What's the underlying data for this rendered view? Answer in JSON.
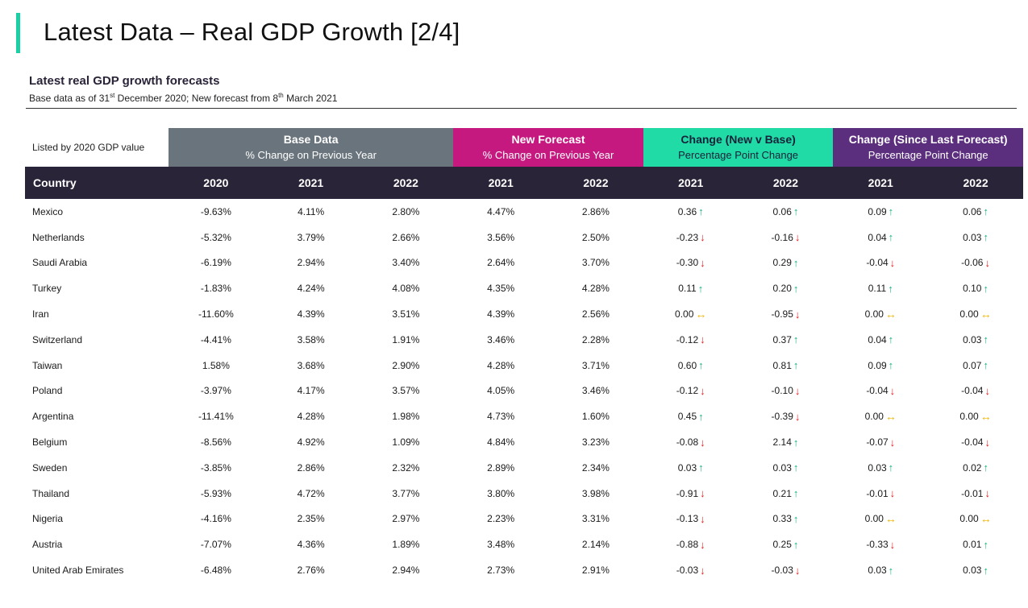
{
  "page": {
    "title": "Latest Data – Real GDP Growth [2/4]",
    "subtitle": "Latest real GDP growth forecasts",
    "note_prefix": "Base data as of 31",
    "note_sup1": "st",
    "note_mid": " December 2020; New forecast from 8",
    "note_sup2": "th",
    "note_suffix": " March 2021"
  },
  "groups": {
    "listed_label": "Listed by 2020 GDP value",
    "base_title": "Base Data",
    "base_sub": "% Change on Previous Year",
    "new_title": "New Forecast",
    "new_sub": "% Change on Previous Year",
    "chg_title": "Change (New v Base)",
    "chg_sub": "Percentage Point Change",
    "since_title": "Change (Since Last Forecast)",
    "since_sub": "Percentage Point Change"
  },
  "columns": [
    "Country",
    "2020",
    "2021",
    "2022",
    "2021",
    "2022",
    "2021",
    "2022",
    "2021",
    "2022"
  ],
  "colors": {
    "accent": "#1ad1a5",
    "base": "#6a747c",
    "new": "#c5197f",
    "change": "#21dba6",
    "since": "#5b2e7e",
    "header": "#2a2438",
    "up": "#18b57a",
    "down": "#e02020",
    "flat": "#f5b400"
  },
  "rows": [
    {
      "country": "Mexico",
      "base2020": "-9.63%",
      "base2021": "4.11%",
      "base2022": "2.80%",
      "new2021": "4.47%",
      "new2022": "2.86%",
      "chg2021": "0.36",
      "chg2021_dir": "up",
      "chg2022": "0.06",
      "chg2022_dir": "up",
      "since2021": "0.09",
      "since2021_dir": "up",
      "since2022": "0.06",
      "since2022_dir": "up"
    },
    {
      "country": "Netherlands",
      "base2020": "-5.32%",
      "base2021": "3.79%",
      "base2022": "2.66%",
      "new2021": "3.56%",
      "new2022": "2.50%",
      "chg2021": "-0.23",
      "chg2021_dir": "down",
      "chg2022": "-0.16",
      "chg2022_dir": "down",
      "since2021": "0.04",
      "since2021_dir": "up",
      "since2022": "0.03",
      "since2022_dir": "up"
    },
    {
      "country": "Saudi Arabia",
      "base2020": "-6.19%",
      "base2021": "2.94%",
      "base2022": "3.40%",
      "new2021": "2.64%",
      "new2022": "3.70%",
      "chg2021": "-0.30",
      "chg2021_dir": "down",
      "chg2022": "0.29",
      "chg2022_dir": "up",
      "since2021": "-0.04",
      "since2021_dir": "down",
      "since2022": "-0.06",
      "since2022_dir": "down"
    },
    {
      "country": "Turkey",
      "base2020": "-1.83%",
      "base2021": "4.24%",
      "base2022": "4.08%",
      "new2021": "4.35%",
      "new2022": "4.28%",
      "chg2021": "0.11",
      "chg2021_dir": "up",
      "chg2022": "0.20",
      "chg2022_dir": "up",
      "since2021": "0.11",
      "since2021_dir": "up",
      "since2022": "0.10",
      "since2022_dir": "up"
    },
    {
      "country": "Iran",
      "base2020": "-11.60%",
      "base2021": "4.39%",
      "base2022": "3.51%",
      "new2021": "4.39%",
      "new2022": "2.56%",
      "chg2021": "0.00",
      "chg2021_dir": "flat",
      "chg2022": "-0.95",
      "chg2022_dir": "down",
      "since2021": "0.00",
      "since2021_dir": "flat",
      "since2022": "0.00",
      "since2022_dir": "flat"
    },
    {
      "country": "Switzerland",
      "base2020": "-4.41%",
      "base2021": "3.58%",
      "base2022": "1.91%",
      "new2021": "3.46%",
      "new2022": "2.28%",
      "chg2021": "-0.12",
      "chg2021_dir": "down",
      "chg2022": "0.37",
      "chg2022_dir": "up",
      "since2021": "0.04",
      "since2021_dir": "up",
      "since2022": "0.03",
      "since2022_dir": "up"
    },
    {
      "country": "Taiwan",
      "base2020": "1.58%",
      "base2021": "3.68%",
      "base2022": "2.90%",
      "new2021": "4.28%",
      "new2022": "3.71%",
      "chg2021": "0.60",
      "chg2021_dir": "up",
      "chg2022": "0.81",
      "chg2022_dir": "up",
      "since2021": "0.09",
      "since2021_dir": "up",
      "since2022": "0.07",
      "since2022_dir": "up"
    },
    {
      "country": "Poland",
      "base2020": "-3.97%",
      "base2021": "4.17%",
      "base2022": "3.57%",
      "new2021": "4.05%",
      "new2022": "3.46%",
      "chg2021": "-0.12",
      "chg2021_dir": "down",
      "chg2022": "-0.10",
      "chg2022_dir": "down",
      "since2021": "-0.04",
      "since2021_dir": "down",
      "since2022": "-0.04",
      "since2022_dir": "down"
    },
    {
      "country": "Argentina",
      "base2020": "-11.41%",
      "base2021": "4.28%",
      "base2022": "1.98%",
      "new2021": "4.73%",
      "new2022": "1.60%",
      "chg2021": "0.45",
      "chg2021_dir": "up",
      "chg2022": "-0.39",
      "chg2022_dir": "down",
      "since2021": "0.00",
      "since2021_dir": "flat",
      "since2022": "0.00",
      "since2022_dir": "flat"
    },
    {
      "country": "Belgium",
      "base2020": "-8.56%",
      "base2021": "4.92%",
      "base2022": "1.09%",
      "new2021": "4.84%",
      "new2022": "3.23%",
      "chg2021": "-0.08",
      "chg2021_dir": "down",
      "chg2022": "2.14",
      "chg2022_dir": "up",
      "since2021": "-0.07",
      "since2021_dir": "down",
      "since2022": "-0.04",
      "since2022_dir": "down"
    },
    {
      "country": "Sweden",
      "base2020": "-3.85%",
      "base2021": "2.86%",
      "base2022": "2.32%",
      "new2021": "2.89%",
      "new2022": "2.34%",
      "chg2021": "0.03",
      "chg2021_dir": "up",
      "chg2022": "0.03",
      "chg2022_dir": "up",
      "since2021": "0.03",
      "since2021_dir": "up",
      "since2022": "0.02",
      "since2022_dir": "up"
    },
    {
      "country": "Thailand",
      "base2020": "-5.93%",
      "base2021": "4.72%",
      "base2022": "3.77%",
      "new2021": "3.80%",
      "new2022": "3.98%",
      "chg2021": "-0.91",
      "chg2021_dir": "down",
      "chg2022": "0.21",
      "chg2022_dir": "up",
      "since2021": "-0.01",
      "since2021_dir": "down",
      "since2022": "-0.01",
      "since2022_dir": "down"
    },
    {
      "country": "Nigeria",
      "base2020": "-4.16%",
      "base2021": "2.35%",
      "base2022": "2.97%",
      "new2021": "2.23%",
      "new2022": "3.31%",
      "chg2021": "-0.13",
      "chg2021_dir": "down",
      "chg2022": "0.33",
      "chg2022_dir": "up",
      "since2021": "0.00",
      "since2021_dir": "flat",
      "since2022": "0.00",
      "since2022_dir": "flat"
    },
    {
      "country": "Austria",
      "base2020": "-7.07%",
      "base2021": "4.36%",
      "base2022": "1.89%",
      "new2021": "3.48%",
      "new2022": "2.14%",
      "chg2021": "-0.88",
      "chg2021_dir": "down",
      "chg2022": "0.25",
      "chg2022_dir": "up",
      "since2021": "-0.33",
      "since2021_dir": "down",
      "since2022": "0.01",
      "since2022_dir": "up"
    },
    {
      "country": "United Arab Emirates",
      "base2020": "-6.48%",
      "base2021": "2.76%",
      "base2022": "2.94%",
      "new2021": "2.73%",
      "new2022": "2.91%",
      "chg2021": "-0.03",
      "chg2021_dir": "down",
      "chg2022": "-0.03",
      "chg2022_dir": "down",
      "since2021": "0.03",
      "since2021_dir": "up",
      "since2022": "0.03",
      "since2022_dir": "up"
    }
  ]
}
